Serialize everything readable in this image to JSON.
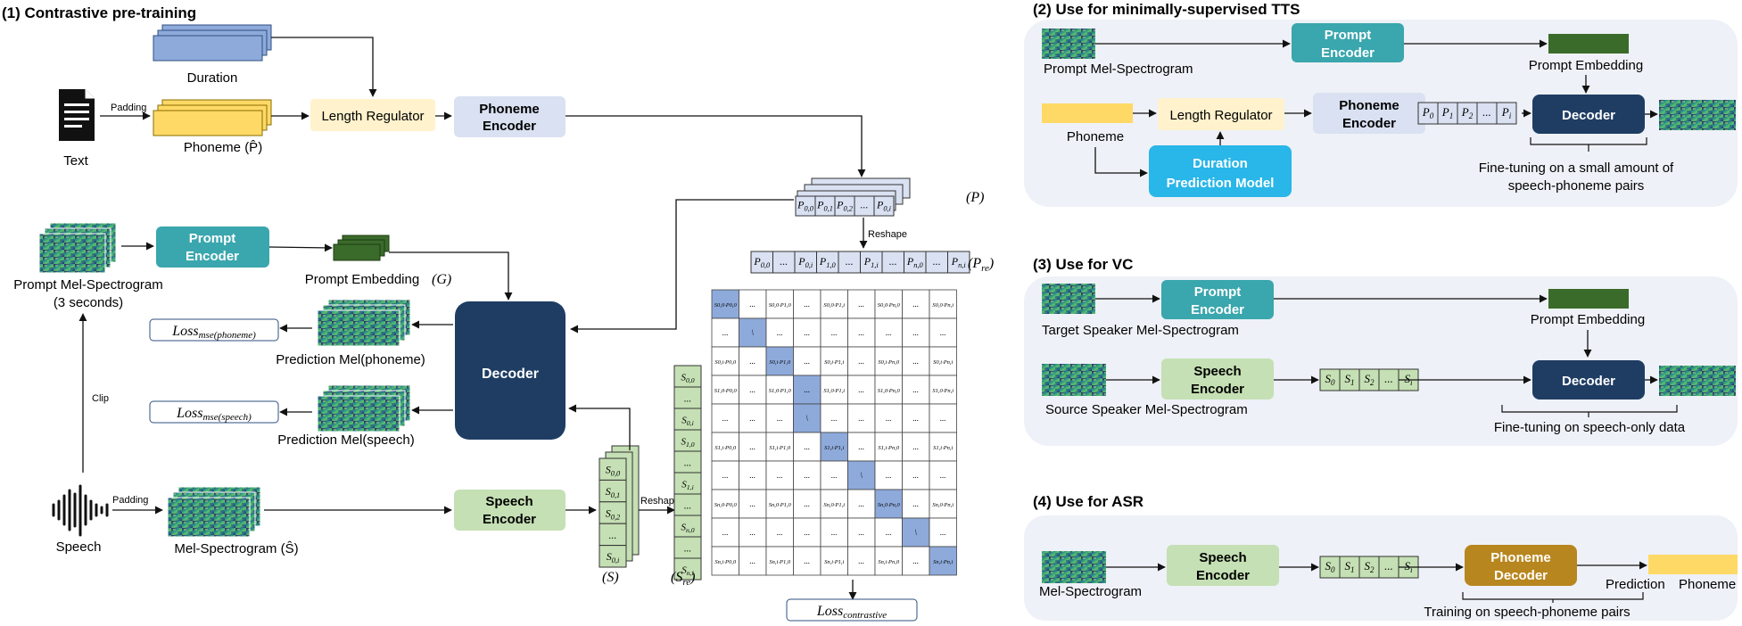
{
  "panel1": {
    "title": "(1) Contrastive pre-training",
    "duration": "Duration",
    "padding": "Padding",
    "padding2": "Padding",
    "text": "Text",
    "phoneme": "Phoneme (P̂)",
    "length_regulator": "Length Regulator",
    "phoneme_encoder": [
      "Phoneme",
      "Encoder"
    ],
    "prompt_encoder": [
      "Prompt",
      "Encoder"
    ],
    "prompt_mel": [
      "Prompt Mel-Spectrogram",
      "(3 seconds)"
    ],
    "prompt_embedding": "Prompt Embedding",
    "g_symbol": "(G)",
    "decoder": "Decoder",
    "loss_phoneme": "Loss",
    "loss_phoneme_sub": "mse(phoneme)",
    "loss_speech": "Loss",
    "loss_speech_sub": "mse(speech)",
    "pred_phoneme": "Prediction Mel(phoneme)",
    "pred_speech": "Prediction Mel(speech)",
    "clip": "Clip",
    "speech": "Speech",
    "mel": "Mel-Spectrogram (Ŝ)",
    "speech_encoder": [
      "Speech",
      "Encoder"
    ],
    "reshape_p": "Reshape",
    "reshape_s": "Reshape",
    "p_label": "(P)",
    "pre_label": "(P",
    "pre_sub": "re",
    "s_label": "(S)",
    "sre_label": "(S",
    "sre_sub": "re",
    "p_cells": [
      "P0,0",
      "P0,1",
      "P0,2",
      "...",
      "P0,i"
    ],
    "pre_cells": [
      "P0,0",
      "...",
      "P0,i",
      "P1,0",
      "...",
      "P1,i",
      "...",
      "Pn,0",
      "...",
      "Pn,i"
    ],
    "s_cells": [
      "S0,0",
      "S0,1",
      "S0,2",
      "...",
      "S0,i"
    ],
    "sre_cells": [
      "S0,0",
      "...",
      "S0,i",
      "S1,0",
      "...",
      "S1,i",
      "...",
      "Sn,0",
      "...",
      "Sn,i"
    ],
    "loss_contrastive": "Loss",
    "loss_contrastive_sub": "contrastive"
  },
  "matrix": {
    "rows": [
      [
        "S0,0·P0,0",
        "...",
        "S0,0·P1,0",
        "...",
        "S0,0·P1,i",
        "...",
        "S0,0·Pn,0",
        "...",
        "S0,0·Pn,i"
      ],
      [
        "...",
        "\\",
        "...",
        "...",
        "...",
        "...",
        "...",
        "...",
        "..."
      ],
      [
        "S0,i·P0,0",
        "...",
        "S0,i·P1,0",
        "...",
        "S0,i·P1,i",
        "...",
        "S0,i·Pn,0",
        "...",
        "S0,i·Pn,i"
      ],
      [
        "S1,0·P0,0",
        "...",
        "S1,0·P1,0",
        "...",
        "S1,0·P1,i",
        "...",
        "S1,0·Pn,0",
        "...",
        "S1,0·Pn,i"
      ],
      [
        "...",
        "...",
        "...",
        "\\",
        "...",
        "...",
        "...",
        "...",
        "..."
      ],
      [
        "S1,i·P0,0",
        "...",
        "S1,i·P1,0",
        "...",
        "S1,i·P1,i",
        "...",
        "S1,i·Pn,0",
        "...",
        "S1,i·Pn,i"
      ],
      [
        "...",
        "...",
        "...",
        "...",
        "...",
        "\\",
        "...",
        "...",
        "..."
      ],
      [
        "Sn,0·P0,0",
        "...",
        "Sn,0·P1,0",
        "...",
        "Sn,0·P1,i",
        "...",
        "Sn,0·Pn,0",
        "...",
        "Sn,0·Pn,i"
      ],
      [
        "...",
        "...",
        "...",
        "...",
        "...",
        "...",
        "...",
        "\\",
        "..."
      ],
      [
        "Sn,i·P0,0",
        "...",
        "Sn,i·P1,0",
        "...",
        "Sn,i·P1,i",
        "...",
        "Sn,i·Pn,0",
        "...",
        "Sn,i·Pn,i"
      ]
    ],
    "diagonal": [
      [
        0,
        0
      ],
      [
        1,
        1
      ],
      [
        2,
        2
      ],
      [
        3,
        3
      ],
      [
        4,
        3
      ],
      [
        5,
        4
      ],
      [
        6,
        5
      ],
      [
        7,
        6
      ],
      [
        8,
        7
      ],
      [
        9,
        8
      ]
    ]
  },
  "panel2": {
    "title": "(2) Use for minimally-supervised TTS",
    "prompt_mel": "Prompt Mel-Spectrogram",
    "prompt_encoder": [
      "Prompt",
      "Encoder"
    ],
    "prompt_embedding": "Prompt Embedding",
    "phoneme": "Phoneme",
    "length_regulator": "Length Regulator",
    "phoneme_encoder": [
      "Phoneme",
      "Encoder"
    ],
    "cells": [
      "P0",
      "P1",
      "P2",
      "...",
      "Pi"
    ],
    "decoder": "Decoder",
    "duration_model": [
      "Duration",
      "Prediction Model"
    ],
    "finetune": [
      "Fine-tuning on a small amount of",
      "speech-phoneme pairs"
    ]
  },
  "panel3": {
    "title": "(3) Use for VC",
    "target_mel": "Target Speaker Mel-Spectrogram",
    "prompt_encoder": [
      "Prompt",
      "Encoder"
    ],
    "prompt_embedding": "Prompt Embedding",
    "source_mel": "Source Speaker Mel-Spectrogram",
    "speech_encoder": [
      "Speech",
      "Encoder"
    ],
    "cells": [
      "S0",
      "S1",
      "S2",
      "...",
      "Si"
    ],
    "decoder": "Decoder",
    "finetune": "Fine-tuning on speech-only data"
  },
  "panel4": {
    "title": "(4) Use for ASR",
    "mel": "Mel-Spectrogram",
    "speech_encoder": [
      "Speech",
      "Encoder"
    ],
    "cells": [
      "S0",
      "S1",
      "S2",
      "...",
      "Si"
    ],
    "phoneme_decoder": [
      "Phoneme",
      "Decoder"
    ],
    "prediction": "Prediction",
    "phoneme": "Phoneme",
    "training": "Training on speech-phoneme pairs"
  },
  "colors": {
    "blue_box": "#8eaadb",
    "yellow": "#ffd966",
    "beige": "#fff2cc",
    "lavender": "#d9e1f2",
    "teal": "#3aa6ad",
    "navy": "#1f3d63",
    "green_light": "#c5e0b4",
    "green_dark": "#3a6b2a",
    "cyan": "#29b6e8",
    "gold": "#b8861e",
    "panel_bg": "#eef1f7"
  }
}
